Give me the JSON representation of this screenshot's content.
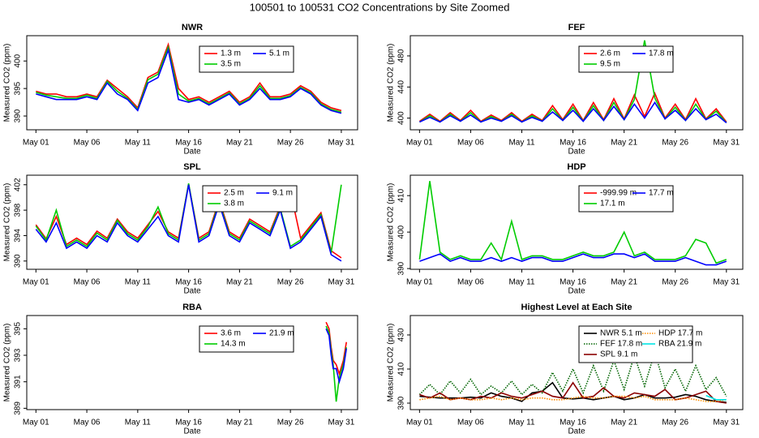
{
  "title": "100501  to  100531 CO2 Concentrations by Site Zoomed",
  "chart_data": [
    {
      "type": "line",
      "title": "NWR",
      "xlabel": "Date",
      "ylabel": "Measured CO2 (ppm)",
      "legend": "top",
      "x": [
        1,
        2,
        3,
        4,
        5,
        6,
        7,
        8,
        9,
        10,
        11,
        12,
        13,
        14,
        15,
        16,
        17,
        18,
        19,
        20,
        21,
        22,
        23,
        24,
        25,
        26,
        27,
        28,
        29,
        30,
        31
      ],
      "xlim": [
        0.1,
        32.6
      ],
      "xticks": [
        {
          "value": 1,
          "label": "May 01"
        },
        {
          "value": 6,
          "label": "May 06"
        },
        {
          "value": 11,
          "label": "May 11"
        },
        {
          "value": 16,
          "label": "May 16"
        },
        {
          "value": 21,
          "label": "May 21"
        },
        {
          "value": 26,
          "label": "May 26"
        },
        {
          "value": 31,
          "label": "May 31"
        }
      ],
      "ylim": [
        387.5,
        404.6
      ],
      "yticks": [
        390,
        395,
        400
      ],
      "series": [
        {
          "name": "1.3 m",
          "color": "#ff0000",
          "values": [
            394.5,
            394,
            394,
            393.5,
            393.5,
            394,
            393.5,
            396.5,
            395,
            393.5,
            391.5,
            397,
            398,
            403,
            395,
            393,
            393.5,
            392.5,
            393.5,
            394.5,
            392.5,
            393.5,
            396,
            393.5,
            393.5,
            394,
            395.5,
            394.5,
            392.5,
            391.5,
            391
          ]
        },
        {
          "name": "3.5 m",
          "color": "#00cc00",
          "values": [
            394.3,
            393.8,
            393.5,
            393.2,
            393.2,
            393.8,
            393.2,
            396.3,
            394.5,
            393.2,
            391.2,
            396.6,
            397.6,
            402.5,
            394,
            392.7,
            393.2,
            392.2,
            393.2,
            394.2,
            392.2,
            393.2,
            395.5,
            393.2,
            393.2,
            393.7,
            395.2,
            394.2,
            392.2,
            391.2,
            390.7
          ]
        },
        {
          "name": "5.1 m",
          "color": "#0000ff",
          "values": [
            394,
            393.5,
            393,
            393,
            393,
            393.5,
            393,
            396,
            394,
            393,
            391,
            396,
            397,
            402,
            393,
            392.5,
            393,
            392,
            393,
            394,
            392,
            393,
            395,
            393,
            393,
            393.5,
            395,
            394,
            392,
            391,
            390.5
          ]
        }
      ]
    },
    {
      "type": "line",
      "title": "FEF",
      "xlabel": "Date",
      "ylabel": "Measured CO2 (ppm)",
      "legend": "top",
      "x": [
        1,
        2,
        3,
        4,
        5,
        6,
        7,
        8,
        9,
        10,
        11,
        12,
        13,
        14,
        15,
        16,
        17,
        18,
        19,
        20,
        21,
        22,
        23,
        24,
        25,
        26,
        27,
        28,
        29,
        30,
        31
      ],
      "xlim": [
        0.1,
        32.6
      ],
      "xticks": [
        {
          "value": 1,
          "label": "May 01"
        },
        {
          "value": 6,
          "label": "May 06"
        },
        {
          "value": 11,
          "label": "May 11"
        },
        {
          "value": 16,
          "label": "May 16"
        },
        {
          "value": 21,
          "label": "May 21"
        },
        {
          "value": 26,
          "label": "May 26"
        },
        {
          "value": 31,
          "label": "May 31"
        }
      ],
      "ylim": [
        385,
        506
      ],
      "yticks": [
        400,
        440,
        480
      ],
      "series": [
        {
          "name": "2.6 m",
          "color": "#ff0000",
          "values": [
            396,
            405,
            396,
            407,
            397,
            410,
            396,
            404,
            397,
            407,
            396,
            405,
            397,
            416,
            398,
            418,
            397,
            420,
            398,
            425,
            399,
            430,
            402,
            432,
            400,
            418,
            398,
            425,
            399,
            412,
            395
          ]
        },
        {
          "name": "9.5 m",
          "color": "#00cc00",
          "values": [
            395,
            403,
            395,
            405,
            396,
            407,
            395,
            402,
            396,
            405,
            395,
            403,
            396,
            412,
            397,
            414,
            396,
            416,
            397,
            420,
            398,
            424,
            500,
            426,
            399,
            414,
            397,
            418,
            398,
            409,
            394
          ]
        },
        {
          "name": "17.8 m",
          "color": "#0000ff",
          "values": [
            395,
            401,
            395,
            403,
            396,
            404,
            395,
            400,
            396,
            403,
            395,
            401,
            396,
            408,
            397,
            410,
            396,
            412,
            397,
            415,
            398,
            418,
            400,
            420,
            399,
            410,
            397,
            412,
            398,
            405,
            394
          ]
        }
      ]
    },
    {
      "type": "line",
      "title": "SPL",
      "xlabel": "Date",
      "ylabel": "Measured CO2 (ppm)",
      "legend": "top",
      "x": [
        1,
        2,
        3,
        4,
        5,
        6,
        7,
        8,
        9,
        10,
        11,
        12,
        13,
        14,
        15,
        16,
        17,
        18,
        19,
        20,
        21,
        22,
        23,
        24,
        25,
        26,
        27,
        28,
        29,
        30,
        31
      ],
      "xlim": [
        0.1,
        32.6
      ],
      "xticks": [
        {
          "value": 1,
          "label": "May 01"
        },
        {
          "value": 6,
          "label": "May 06"
        },
        {
          "value": 11,
          "label": "May 11"
        },
        {
          "value": 16,
          "label": "May 16"
        },
        {
          "value": 21,
          "label": "May 21"
        },
        {
          "value": 26,
          "label": "May 26"
        },
        {
          "value": 31,
          "label": "May 31"
        }
      ],
      "ylim": [
        388.7,
        403.5
      ],
      "yticks": [
        390,
        394,
        398,
        402
      ],
      "series": [
        {
          "name": "2.5 m",
          "color": "#ff0000",
          "values": [
            395.7,
            393.5,
            397,
            392.6,
            393.6,
            392.6,
            394.7,
            393.6,
            396.6,
            394.6,
            393.6,
            395.7,
            397.8,
            394.6,
            393.6,
            402.1,
            393.6,
            394.6,
            399.6,
            394.6,
            393.6,
            396.6,
            395.6,
            394.6,
            398.6,
            401,
            393.6,
            395.6,
            397.6,
            391.6,
            390.5
          ]
        },
        {
          "name": "3.8 m",
          "color": "#00cc00",
          "values": [
            395.5,
            393.3,
            398,
            392.3,
            393.3,
            392.3,
            394.4,
            393.3,
            396.4,
            394.3,
            393.3,
            395.4,
            398.5,
            394.3,
            393.3,
            402.2,
            393.3,
            394.3,
            399.3,
            394.3,
            393.3,
            396.3,
            395.3,
            394.3,
            398.3,
            392.3,
            393.3,
            395.3,
            397.3,
            391.3,
            402
          ]
        },
        {
          "name": "9.1 m",
          "color": "#0000ff",
          "values": [
            395,
            393,
            396,
            392,
            393,
            392,
            394,
            393,
            396,
            394,
            393,
            395,
            397,
            394,
            393,
            402,
            393,
            394,
            399,
            394,
            393,
            396,
            395,
            394,
            398,
            392,
            393,
            395,
            397,
            391,
            390
          ]
        }
      ]
    },
    {
      "type": "line",
      "title": "HDP",
      "xlabel": "Date",
      "ylabel": "Measured CO2 (ppm)",
      "legend": "top",
      "x": [
        1,
        2,
        3,
        4,
        5,
        6,
        7,
        8,
        9,
        10,
        11,
        12,
        13,
        14,
        15,
        16,
        17,
        18,
        19,
        20,
        21,
        22,
        23,
        24,
        25,
        26,
        27,
        28,
        29,
        30,
        31
      ],
      "xlim": [
        0.1,
        32.6
      ],
      "xticks": [
        {
          "value": 1,
          "label": "May 01"
        },
        {
          "value": 6,
          "label": "May 06"
        },
        {
          "value": 11,
          "label": "May 11"
        },
        {
          "value": 16,
          "label": "May 16"
        },
        {
          "value": 21,
          "label": "May 21"
        },
        {
          "value": 26,
          "label": "May 26"
        },
        {
          "value": 31,
          "label": "May 31"
        }
      ],
      "ylim": [
        389.8,
        415.6
      ],
      "yticks": [
        390,
        400,
        410
      ],
      "series": [
        {
          "name": "-999.99 m",
          "color": "#ff0000",
          "values": [
            null,
            null,
            null,
            null,
            null,
            null,
            null,
            null,
            null,
            null,
            null,
            null,
            null,
            null,
            null,
            null,
            null,
            null,
            null,
            null,
            null,
            null,
            null,
            null,
            null,
            null,
            null,
            null,
            null,
            null,
            null
          ]
        },
        {
          "name": "17.1 m",
          "color": "#00cc00",
          "values": [
            392.5,
            414,
            394.5,
            392.5,
            393.5,
            392.5,
            392.5,
            397,
            392.5,
            403,
            392.5,
            393.5,
            393.5,
            392.5,
            392.5,
            393.5,
            394.5,
            393.5,
            393.5,
            394.5,
            400,
            393.5,
            394.5,
            392.5,
            392.5,
            392.5,
            393.5,
            398,
            397,
            391.5,
            392.5
          ]
        },
        {
          "name": "17.7 m",
          "color": "#0000ff",
          "values": [
            392,
            393,
            394,
            392,
            393,
            392,
            392,
            393,
            392,
            393,
            392,
            393,
            393,
            392,
            392,
            393,
            394,
            393,
            393,
            394,
            394,
            393,
            394,
            392,
            392,
            392,
            393,
            392,
            391,
            391,
            392
          ]
        }
      ]
    },
    {
      "type": "line",
      "title": "RBA",
      "xlabel": "Date",
      "ylabel": "Measured CO2 (ppm)",
      "legend": "top",
      "x": [
        29.5,
        29.8,
        30,
        30.2,
        30.5,
        30.8,
        31,
        31.2,
        31.5
      ],
      "xlim": [
        0.1,
        32.6
      ],
      "xticks": [
        {
          "value": 1,
          "label": "May 01"
        },
        {
          "value": 6,
          "label": "May 06"
        },
        {
          "value": 11,
          "label": "May 11"
        },
        {
          "value": 16,
          "label": "May 16"
        },
        {
          "value": 21,
          "label": "May 21"
        },
        {
          "value": 26,
          "label": "May 26"
        },
        {
          "value": 31,
          "label": "May 31"
        }
      ],
      "ylim": [
        388.9,
        396
      ],
      "yticks": [
        389,
        391,
        393,
        395
      ],
      "series": [
        {
          "name": "3.6 m",
          "color": "#ff0000",
          "values": [
            395.5,
            395,
            393.6,
            392.6,
            392.3,
            391.6,
            392.1,
            392.6,
            394
          ]
        },
        {
          "name": "14.3 m",
          "color": "#00cc00",
          "values": [
            395.2,
            394.7,
            393.3,
            392.3,
            389.5,
            391.3,
            391.8,
            392.3,
            393.6
          ]
        },
        {
          "name": "21.9 m",
          "color": "#0000ff",
          "values": [
            395,
            394.5,
            393,
            392,
            392,
            391,
            391.5,
            392,
            393.5
          ]
        }
      ]
    },
    {
      "type": "line",
      "title": "Highest Level at Each Site",
      "xlabel": "Date",
      "ylabel": "Measured CO2 (ppm)",
      "legend": "top",
      "x": [
        1,
        2,
        3,
        4,
        5,
        6,
        7,
        8,
        9,
        10,
        11,
        12,
        13,
        14,
        15,
        16,
        17,
        18,
        19,
        20,
        21,
        22,
        23,
        24,
        25,
        26,
        27,
        28,
        29,
        30,
        31
      ],
      "xlim": [
        0.1,
        32.6
      ],
      "xticks": [
        {
          "value": 1,
          "label": "May 01"
        },
        {
          "value": 6,
          "label": "May 06"
        },
        {
          "value": 11,
          "label": "May 11"
        },
        {
          "value": 16,
          "label": "May 16"
        },
        {
          "value": 21,
          "label": "May 21"
        },
        {
          "value": 26,
          "label": "May 26"
        },
        {
          "value": 31,
          "label": "May 31"
        }
      ],
      "ylim": [
        386.2,
        441.4
      ],
      "yticks": [
        390,
        410,
        430
      ],
      "series": [
        {
          "name": "NWR  5.1 m",
          "color": "#000000",
          "style": "solid",
          "values": [
            394,
            393.5,
            393,
            393,
            393,
            393.5,
            393,
            396,
            394,
            393,
            391,
            396,
            397,
            402,
            393,
            392.5,
            393,
            392,
            393,
            394,
            392,
            393,
            395,
            393,
            393,
            393.5,
            395,
            394,
            392,
            391,
            390.5
          ]
        },
        {
          "name": "FEF  17.8 m",
          "color": "#006400",
          "style": "dotted",
          "values": [
            395,
            401,
            395,
            403,
            396,
            404,
            395,
            400,
            396,
            403,
            395,
            401,
            396,
            408,
            397,
            410,
            396,
            412,
            397,
            415,
            398,
            418,
            400,
            420,
            399,
            410,
            397,
            412,
            398,
            405,
            394
          ]
        },
        {
          "name": "SPL  9.1 m",
          "color": "#8b0000",
          "style": "solid",
          "values": [
            395,
            393,
            396,
            392,
            393,
            392,
            394,
            393,
            396,
            394,
            393,
            395,
            397,
            394,
            393,
            402,
            393,
            394,
            399,
            394,
            393,
            396,
            395,
            394,
            398,
            392,
            393,
            395,
            397,
            391,
            390
          ]
        },
        {
          "name": "HDP  17.7 m",
          "color": "#ff8c00",
          "style": "dotted",
          "values": [
            392,
            393,
            394,
            392,
            393,
            392,
            392,
            393,
            392,
            393,
            392,
            393,
            393,
            392,
            392,
            393,
            394,
            393,
            393,
            394,
            394,
            393,
            394,
            392,
            392,
            392,
            393,
            392,
            391,
            391,
            392
          ]
        },
        {
          "name": "RBA  21.9 m",
          "color": "#00e5e5",
          "style": "solid",
          "values": [
            null,
            null,
            null,
            null,
            null,
            null,
            null,
            null,
            null,
            null,
            null,
            null,
            null,
            null,
            null,
            null,
            null,
            null,
            null,
            null,
            null,
            null,
            null,
            null,
            null,
            null,
            null,
            null,
            394.5,
            392,
            392
          ]
        }
      ]
    }
  ]
}
